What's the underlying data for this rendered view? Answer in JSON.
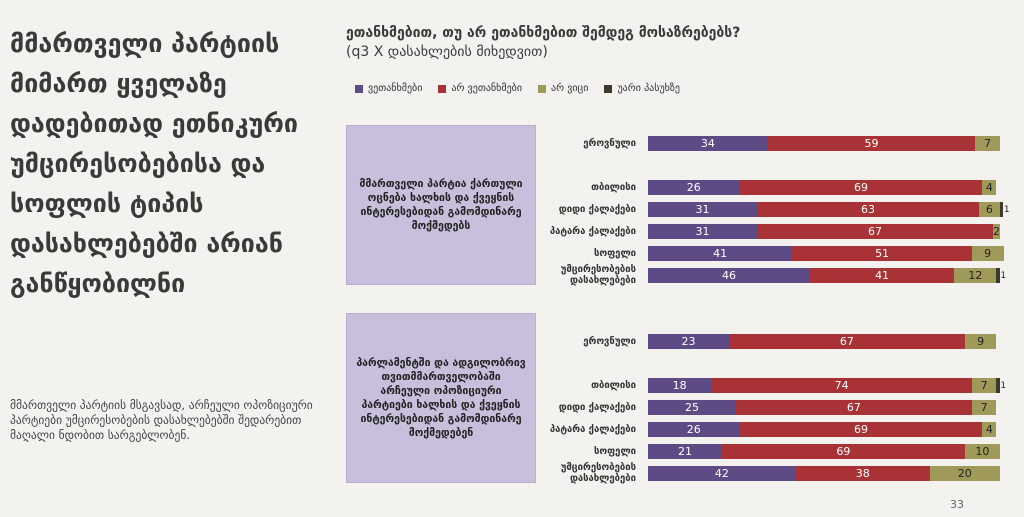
{
  "left": {
    "title": "მმართველი პარტიის მიმართ ყველაზე დადებითად ეთნიკური უმცირესობებისა და სოფლის ტიპის დასახლებებში არიან განწყობილნი",
    "body": "მმართველი პარტიის მსგავსად, არჩეული ოპოზიციური პარტიები უმცირესობების დასახლებებში შედარებით მაღალი ნდობით სარგებლობენ."
  },
  "question": {
    "title": "ეთანხმებით, თუ არ ეთანხმებით შემდეგ მოსაზრებებს?",
    "subtitle": "(q3 X დასახლების მიხედვით)"
  },
  "page_number": "33",
  "colors": {
    "agree": "#5e4b86",
    "disagree": "#a83235",
    "dont_know": "#a09a5a",
    "refuse": "#3d3a2a"
  },
  "chart_data": [
    {
      "type": "bar",
      "orientation": "horizontal-stacked",
      "statement": "მმართველი პარტია ქართული ოცნება ხალხის და ქვეყნის ინტერესებიდან გამომდინარე მოქმედებს",
      "legend": [
        "ვეთანხმები",
        "არ ვეთანხმები",
        "არ ვიცი",
        "უარი პასუხზე"
      ],
      "categories": [
        "ეროვნული",
        "თბილისი",
        "დიდი ქალაქები",
        "პატარა ქალაქები",
        "სოფელი",
        "უმცირესობების დასახლებები"
      ],
      "series": [
        {
          "name": "ვეთანხმები",
          "values": [
            34,
            26,
            31,
            31,
            41,
            46
          ]
        },
        {
          "name": "არ ვეთანხმები",
          "values": [
            59,
            69,
            63,
            67,
            51,
            41
          ]
        },
        {
          "name": "არ ვიცი",
          "values": [
            7,
            4,
            6,
            2,
            9,
            12
          ]
        },
        {
          "name": "უარი პასუხზე",
          "values": [
            0,
            0,
            1,
            0,
            0,
            1
          ]
        }
      ],
      "xlim": [
        0,
        100
      ]
    },
    {
      "type": "bar",
      "orientation": "horizontal-stacked",
      "statement": "პარლამენტში და ადგილობრივ თვითმმართველობაში არჩეული ოპოზიციური პარტიები ხალხის და ქვეყნის ინტერესებიდან გამომდინარე მოქმედებენ",
      "legend": [
        "ვეთანხმები",
        "არ ვეთანხმები",
        "არ ვიცი",
        "უარი პასუხზე"
      ],
      "categories": [
        "ეროვნული",
        "თბილისი",
        "დიდი ქალაქები",
        "პატარა ქალაქები",
        "სოფელი",
        "უმცირესობების დასახლებები"
      ],
      "series": [
        {
          "name": "ვეთანხმები",
          "values": [
            23,
            18,
            25,
            26,
            21,
            42
          ]
        },
        {
          "name": "არ ვეთანხმები",
          "values": [
            67,
            74,
            67,
            69,
            69,
            38
          ]
        },
        {
          "name": "არ ვიცი",
          "values": [
            9,
            7,
            7,
            4,
            10,
            20
          ]
        },
        {
          "name": "უარი პასუხზე",
          "values": [
            0,
            1,
            0,
            0,
            0,
            0
          ]
        }
      ],
      "xlim": [
        0,
        100
      ]
    }
  ]
}
